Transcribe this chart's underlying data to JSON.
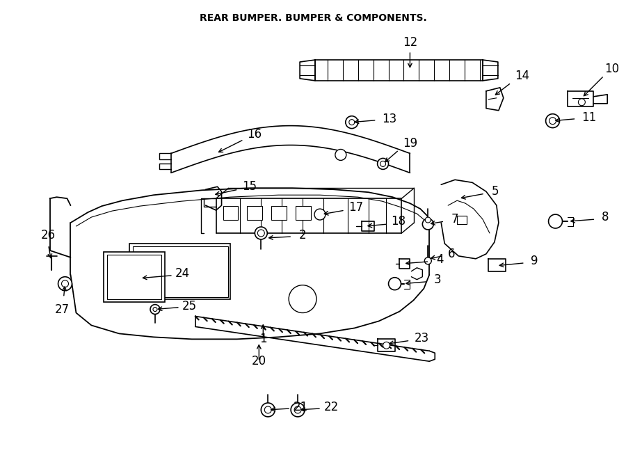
{
  "title": "REAR BUMPER. BUMPER & COMPONENTS.",
  "bg_color": "#ffffff",
  "line_color": "#000000",
  "fig_width": 9.0,
  "fig_height": 6.61,
  "dpi": 100
}
